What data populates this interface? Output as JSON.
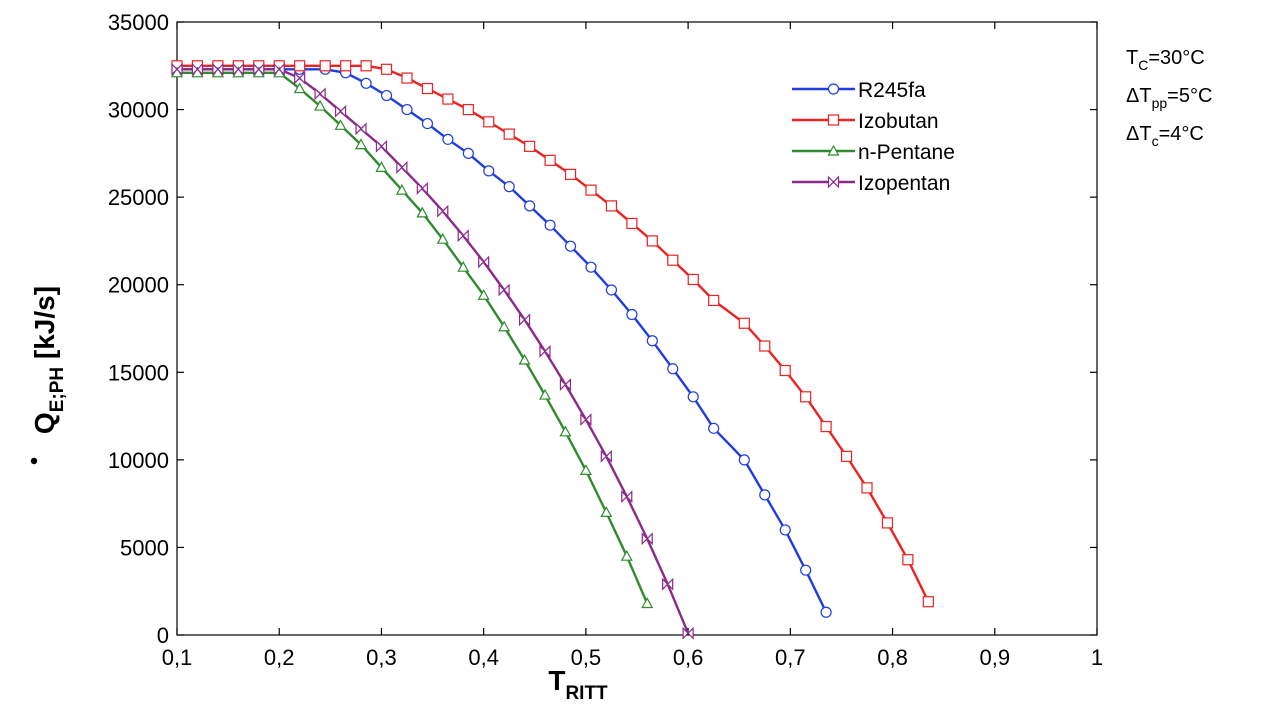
{
  "chart_data": {
    "type": "line",
    "xlabel": {
      "main": "T",
      "sub": "RITT"
    },
    "ylabel": {
      "main": "Q",
      "sub": "E;PH",
      "unit": " [kJ/s]"
    },
    "xlim": [
      0.1,
      1.0
    ],
    "ylim": [
      0,
      35000
    ],
    "x_ticks": [
      0.1,
      0.2,
      0.3,
      0.4,
      0.5,
      0.6,
      0.7,
      0.8,
      0.9,
      1.0
    ],
    "x_tick_labels": [
      "0,1",
      "0,2",
      "0,3",
      "0,4",
      "0,5",
      "0,6",
      "0,7",
      "0,8",
      "0,9",
      "1"
    ],
    "y_ticks": [
      0,
      5000,
      10000,
      15000,
      20000,
      25000,
      30000,
      35000
    ],
    "y_tick_labels": [
      "0",
      "5000",
      "10000",
      "15000",
      "20000",
      "25000",
      "30000",
      "35000"
    ],
    "grid": false,
    "legend_position": "top-right",
    "annotations": [
      {
        "main": "T",
        "sub": "C",
        "rest": "=30°C"
      },
      {
        "main": "ΔT",
        "sub": "pp",
        "rest": "=5°C"
      },
      {
        "main": "ΔT",
        "sub": "c",
        "rest": "=4°C"
      }
    ],
    "series": [
      {
        "name": "R245fa",
        "color": "#1f3de0",
        "marker": "circle",
        "x": [
          0.1,
          0.12,
          0.14,
          0.16,
          0.18,
          0.2,
          0.22,
          0.245,
          0.265,
          0.285,
          0.305,
          0.325,
          0.345,
          0.365,
          0.385,
          0.405,
          0.425,
          0.445,
          0.465,
          0.485,
          0.505,
          0.525,
          0.545,
          0.565,
          0.585,
          0.605,
          0.625,
          0.655,
          0.675,
          0.695,
          0.715,
          0.735
        ],
        "y": [
          32300,
          32300,
          32300,
          32300,
          32300,
          32300,
          32300,
          32300,
          32100,
          31500,
          30800,
          30000,
          29200,
          28300,
          27500,
          26500,
          25600,
          24500,
          23400,
          22200,
          21000,
          19700,
          18300,
          16800,
          15200,
          13600,
          11800,
          10000,
          8000,
          6000,
          3700,
          1300
        ]
      },
      {
        "name": "Izobutan",
        "color": "#ee2222",
        "marker": "square",
        "x": [
          0.1,
          0.12,
          0.14,
          0.16,
          0.18,
          0.2,
          0.22,
          0.245,
          0.265,
          0.285,
          0.305,
          0.325,
          0.345,
          0.365,
          0.385,
          0.405,
          0.425,
          0.445,
          0.465,
          0.485,
          0.505,
          0.525,
          0.545,
          0.565,
          0.585,
          0.605,
          0.625,
          0.655,
          0.675,
          0.695,
          0.715,
          0.735,
          0.755,
          0.775,
          0.795,
          0.815,
          0.835
        ],
        "y": [
          32500,
          32500,
          32500,
          32500,
          32500,
          32500,
          32500,
          32500,
          32500,
          32500,
          32300,
          31800,
          31200,
          30600,
          30000,
          29300,
          28600,
          27900,
          27100,
          26300,
          25400,
          24500,
          23500,
          22500,
          21400,
          20300,
          19100,
          17800,
          16500,
          15100,
          13600,
          11900,
          10200,
          8400,
          6400,
          4300,
          1900
        ]
      },
      {
        "name": "n-Pentane",
        "color": "#2e8b2e",
        "marker": "triangle",
        "x": [
          0.1,
          0.12,
          0.14,
          0.16,
          0.18,
          0.2,
          0.22,
          0.24,
          0.26,
          0.28,
          0.3,
          0.32,
          0.34,
          0.36,
          0.38,
          0.4,
          0.42,
          0.44,
          0.46,
          0.48,
          0.5,
          0.52,
          0.54,
          0.56
        ],
        "y": [
          32100,
          32100,
          32100,
          32100,
          32100,
          32100,
          31200,
          30200,
          29100,
          28000,
          26700,
          25400,
          24100,
          22600,
          21000,
          19400,
          17600,
          15700,
          13700,
          11600,
          9400,
          7000,
          4500,
          1800
        ]
      },
      {
        "name": "Izopentan",
        "color": "#8b2a8b",
        "marker": "bowtie",
        "x": [
          0.1,
          0.12,
          0.14,
          0.16,
          0.18,
          0.2,
          0.22,
          0.24,
          0.26,
          0.28,
          0.3,
          0.32,
          0.34,
          0.36,
          0.38,
          0.4,
          0.42,
          0.44,
          0.46,
          0.48,
          0.5,
          0.52,
          0.54,
          0.56,
          0.58,
          0.6
        ],
        "y": [
          32300,
          32300,
          32300,
          32300,
          32300,
          32300,
          31800,
          30900,
          29900,
          28900,
          27900,
          26700,
          25500,
          24200,
          22800,
          21300,
          19700,
          18000,
          16200,
          14300,
          12300,
          10200,
          7900,
          5500,
          2900,
          100
        ]
      }
    ]
  }
}
